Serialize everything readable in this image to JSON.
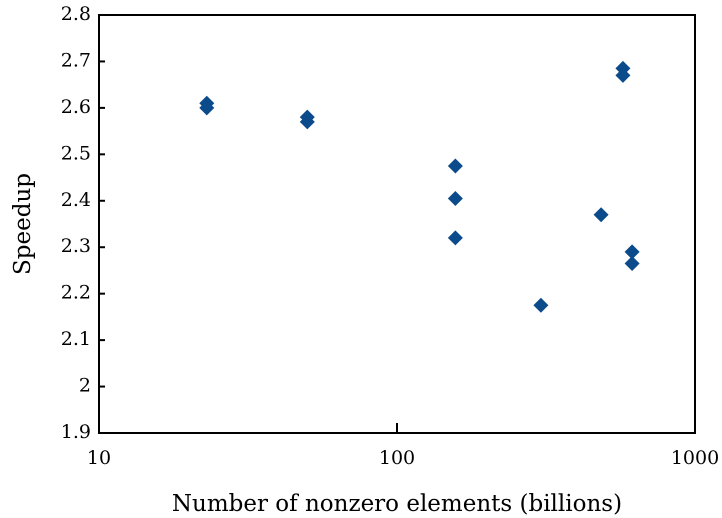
{
  "chart_data": {
    "type": "scatter",
    "x_label": "Number of nonzero elements (billions)",
    "y_label": "Speedup",
    "x": [
      23,
      23,
      50,
      50,
      157,
      157,
      157,
      304,
      484,
      573,
      573,
      615,
      615
    ],
    "y": [
      2.61,
      2.6,
      2.58,
      2.57,
      2.475,
      2.405,
      2.32,
      2.175,
      2.37,
      2.685,
      2.67,
      2.29,
      2.265
    ],
    "color": "#0b4a8b",
    "x_log": true,
    "xlim": [
      10,
      1000
    ],
    "xticks": [
      10,
      100,
      1000
    ],
    "ylim": [
      1.9,
      2.8
    ],
    "yticks": [
      1.9,
      2,
      2.1,
      2.2,
      2.3,
      2.4,
      2.5,
      2.6,
      2.7,
      2.8
    ]
  }
}
